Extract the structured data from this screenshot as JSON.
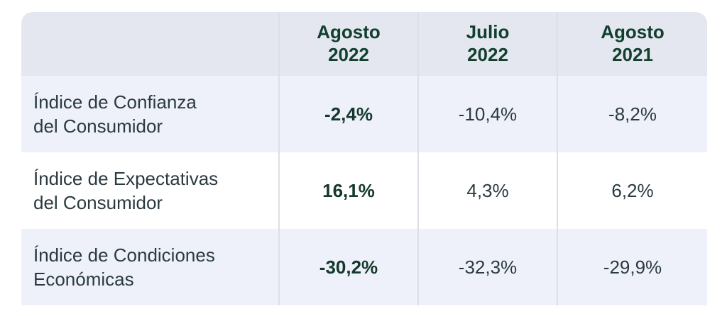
{
  "table": {
    "headers": [
      {
        "line1": "",
        "line2": ""
      },
      {
        "line1": "Agosto",
        "line2": "2022"
      },
      {
        "line1": "Julio",
        "line2": "2022"
      },
      {
        "line1": "Agosto",
        "line2": "2021"
      }
    ],
    "rows": [
      {
        "label_line1": "Índice de Confianza",
        "label_line2": "del Consumidor",
        "values": [
          "-2,4%",
          "-10,4%",
          "-8,2%"
        ]
      },
      {
        "label_line1": "Índice de Expectativas",
        "label_line2": "del Consumidor",
        "values": [
          "16,1%",
          "4,3%",
          "6,2%"
        ]
      },
      {
        "label_line1": "Índice de Condiciones",
        "label_line2": "Económicas",
        "values": [
          "-30,2%",
          "-32,3%",
          "-29,9%"
        ]
      }
    ]
  }
}
